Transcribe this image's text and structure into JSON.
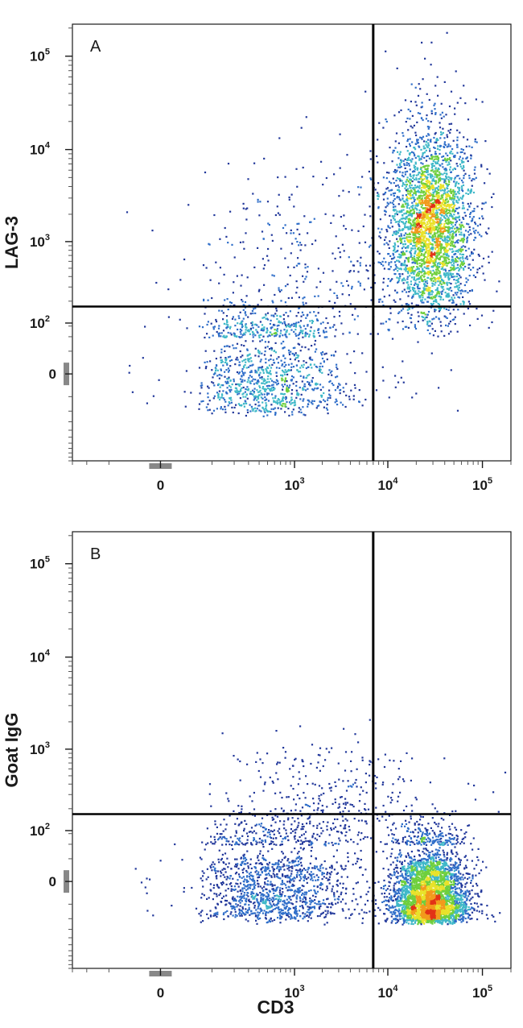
{
  "chart_data": [
    {
      "type": "scatter",
      "panel_label": "A",
      "xlabel": "",
      "ylabel": "LAG-3",
      "x_scale": "logicle",
      "y_scale": "logicle",
      "xlim": [
        -300,
        200000
      ],
      "ylim": [
        -300,
        220000
      ],
      "x_ticks": [
        {
          "base": "0",
          "exp": ""
        },
        {
          "base": "10",
          "exp": "3"
        },
        {
          "base": "10",
          "exp": "4"
        },
        {
          "base": "10",
          "exp": "5"
        }
      ],
      "y_ticks": [
        {
          "base": "0",
          "exp": ""
        },
        {
          "base": "10",
          "exp": "2"
        },
        {
          "base": "10",
          "exp": "3"
        },
        {
          "base": "10",
          "exp": "4"
        },
        {
          "base": "10",
          "exp": "5"
        }
      ],
      "x_tick_values": [
        0,
        1000,
        10000,
        100000
      ],
      "y_tick_values": [
        0,
        100,
        1000,
        10000,
        100000
      ],
      "quadrant_gate": {
        "x": 7000,
        "y": 170
      },
      "populations": [
        {
          "center_x": 28000,
          "center_y": 1500,
          "spread_x_decades": 0.22,
          "spread_y_decades": 0.55,
          "count": 3200,
          "peak_x": 27000,
          "peak_y": 1400
        },
        {
          "center_x": 500,
          "center_y": 40,
          "spread_x_decades": 0.45,
          "spread_y_decades": 0.35,
          "count": 1200
        },
        {
          "center_x": 1500,
          "center_y": 600,
          "spread_x_decades": 0.7,
          "spread_y_decades": 0.55,
          "count": 300
        }
      ],
      "grid": false,
      "legend": "none",
      "density_colors": [
        "#22389b",
        "#2f6ec9",
        "#3fb8c8",
        "#6fcf3e",
        "#e8e22a",
        "#f29a1c",
        "#e23217"
      ]
    },
    {
      "type": "scatter",
      "panel_label": "B",
      "xlabel": "CD3",
      "ylabel": "Goat IgG",
      "x_scale": "logicle",
      "y_scale": "logicle",
      "xlim": [
        -300,
        200000
      ],
      "ylim": [
        -300,
        220000
      ],
      "x_ticks": [
        {
          "base": "0",
          "exp": ""
        },
        {
          "base": "10",
          "exp": "3"
        },
        {
          "base": "10",
          "exp": "4"
        },
        {
          "base": "10",
          "exp": "5"
        }
      ],
      "y_ticks": [
        {
          "base": "0",
          "exp": ""
        },
        {
          "base": "10",
          "exp": "2"
        },
        {
          "base": "10",
          "exp": "3"
        },
        {
          "base": "10",
          "exp": "4"
        },
        {
          "base": "10",
          "exp": "5"
        }
      ],
      "x_tick_values": [
        0,
        1000,
        10000,
        100000
      ],
      "y_tick_values": [
        0,
        100,
        1000,
        10000,
        100000
      ],
      "quadrant_gate": {
        "x": 7000,
        "y": 170
      },
      "populations": [
        {
          "center_x": 27000,
          "center_y": 20,
          "spread_x_decades": 0.2,
          "spread_y_decades": 0.3,
          "count": 3500,
          "peak_x": 27000,
          "peak_y": 20
        },
        {
          "center_x": 600,
          "center_y": 30,
          "spread_x_decades": 0.45,
          "spread_y_decades": 0.3,
          "count": 1400
        },
        {
          "center_x": 3000,
          "center_y": 250,
          "spread_x_decades": 0.6,
          "spread_y_decades": 0.35,
          "count": 350
        }
      ],
      "grid": false,
      "legend": "none",
      "density_colors": [
        "#22389b",
        "#2f6ec9",
        "#3fb8c8",
        "#6fcf3e",
        "#e8e22a",
        "#f29a1c",
        "#e23217"
      ]
    }
  ]
}
